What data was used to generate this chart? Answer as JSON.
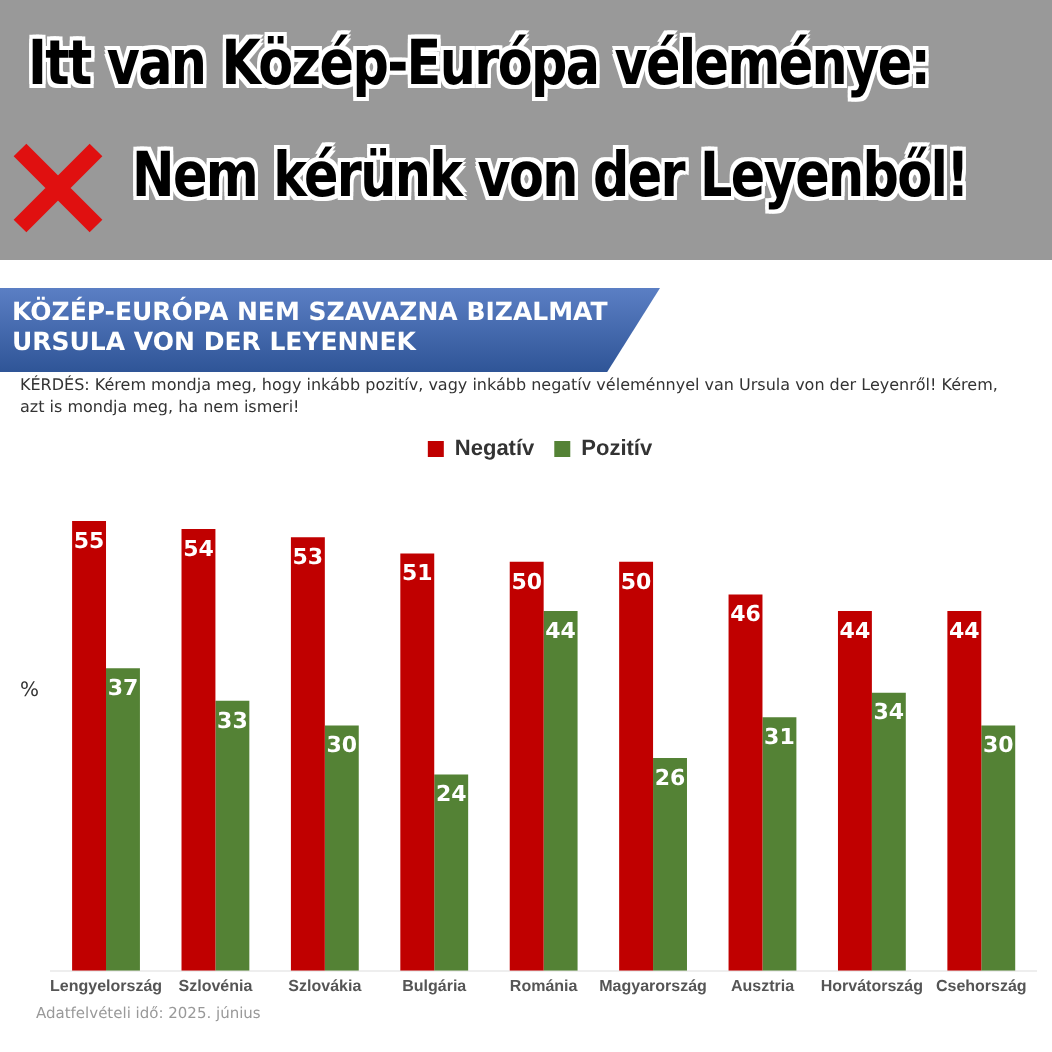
{
  "chart_data": {
    "type": "bar",
    "title": "Itt van Közép-Európa véleménye:",
    "subtitle": "Nem kérünk von der Leyenből!",
    "ylabel": "%",
    "annotations": [
      "KÖZÉP-EURÓPA NEM SZAVAZNA BIZALMAT URSULA VON DER LEYENNEK",
      "KÉRDÉS: Kérem mondja meg, hogy inkább pozitív, vagy inkább negatív véleménnyel van Ursula von der Leyenről! Kérem, azt is mondja meg, ha nem ismeri!",
      "Adatfelvételi idő: 2025. június"
    ],
    "categories": [
      "Lengyelország",
      "Szlovénia",
      "Szlovákia",
      "Bulgária",
      "Románia",
      "Magyarország",
      "Ausztria",
      "Horvátország",
      "Csehország"
    ],
    "series": [
      {
        "name": "Negatív",
        "color": "#c00000",
        "values": [
          55,
          54,
          53,
          51,
          50,
          50,
          46,
          44,
          44
        ]
      },
      {
        "name": "Pozitív",
        "color": "#548235",
        "values": [
          37,
          33,
          30,
          24,
          44,
          26,
          31,
          34,
          30
        ]
      }
    ],
    "data_labels": true,
    "legend": "top",
    "grid": false
  }
}
